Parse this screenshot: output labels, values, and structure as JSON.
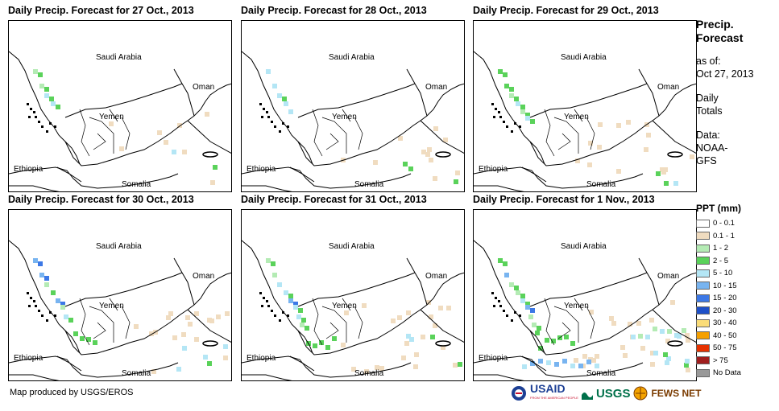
{
  "panels": [
    {
      "title": "Daily Precip. Forecast for 27 Oct., 2013",
      "day": 1
    },
    {
      "title": "Daily Precip. Forecast for 28 Oct., 2013",
      "day": 2
    },
    {
      "title": "Daily Precip. Forecast for 29 Oct., 2013",
      "day": 3
    },
    {
      "title": "Daily Precip. Forecast for 30 Oct., 2013",
      "day": 4
    },
    {
      "title": "Daily Precip. Forecast for 31 Oct., 2013",
      "day": 5
    },
    {
      "title": "Daily Precip. Forecast for 1 Nov., 2013",
      "day": 6
    }
  ],
  "map_labels": {
    "saudi": "Saudi Arabia",
    "oman": "Oman",
    "yemen": "Yemen",
    "ethiopia": "Ethiopia",
    "somalia": "Somalia"
  },
  "sidebar": {
    "title_line1": "Precip.",
    "title_line2": "Forecast",
    "asof_label": "as of:",
    "asof_date": "Oct 27, 2013",
    "totals_line1": "Daily",
    "totals_line2": "Totals",
    "data_label": "Data:",
    "data_line1": "NOAA-",
    "data_line2": "GFS"
  },
  "legend": {
    "title": "PPT (mm)",
    "items": [
      {
        "label": "0 - 0.1",
        "color": "#ffffff"
      },
      {
        "label": "0.1 - 1",
        "color": "#f0dcc0"
      },
      {
        "label": "1 - 2",
        "color": "#b4ebb4"
      },
      {
        "label": "2 - 5",
        "color": "#5ad25a"
      },
      {
        "label": "5 - 10",
        "color": "#b4e6f5"
      },
      {
        "label": "10 - 15",
        "color": "#78b4f0"
      },
      {
        "label": "15 - 20",
        "color": "#3c78e6"
      },
      {
        "label": "20 - 30",
        "color": "#1e50c8"
      },
      {
        "label": "30 - 40",
        "color": "#fadc78"
      },
      {
        "label": "40 - 50",
        "color": "#f5a000"
      },
      {
        "label": "50 - 75",
        "color": "#e63200"
      },
      {
        "label": "> 75",
        "color": "#a01e1e"
      },
      {
        "label": "No Data",
        "color": "#999999"
      }
    ]
  },
  "footer": {
    "credit": "Map produced by USGS/EROS"
  },
  "logos": {
    "usaid": "USAID",
    "usaid_sub": "FROM THE AMERICAN PEOPLE",
    "usgs": "USGS",
    "fews": "FEWS NET"
  }
}
